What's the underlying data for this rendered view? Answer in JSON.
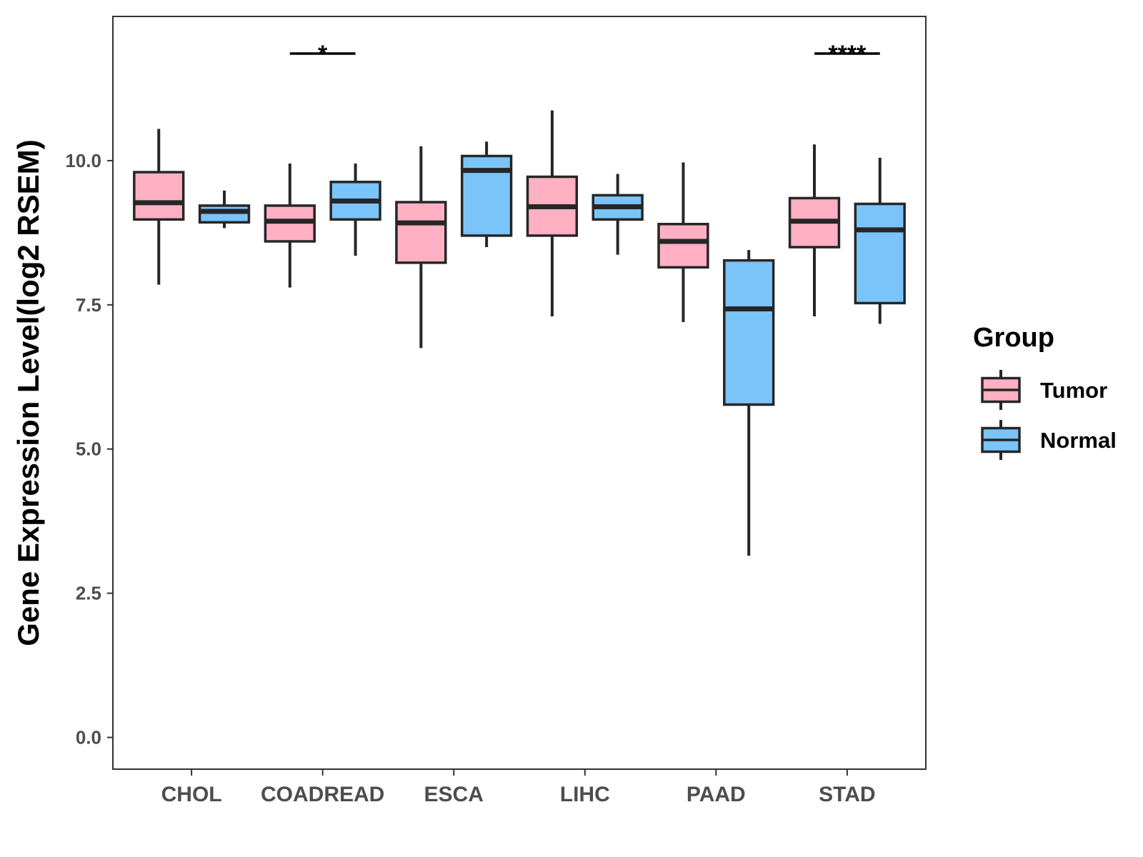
{
  "chart_data": {
    "type": "boxplot",
    "title": "",
    "xlabel": "",
    "ylabel": "Gene Expression Level(log2 RSEM)",
    "ylim": [
      -0.55,
      12.5
    ],
    "yticks": [
      0.0,
      2.5,
      5.0,
      7.5,
      10.0
    ],
    "ytick_labels": [
      "0.0",
      "2.5",
      "5.0",
      "7.5",
      "10.0"
    ],
    "grid": false,
    "categories": [
      "CHOL",
      "COADREAD",
      "ESCA",
      "LIHC",
      "PAAD",
      "STAD"
    ],
    "legend": {
      "title": "Group",
      "position": "right",
      "entries": [
        "Tumor",
        "Normal"
      ]
    },
    "series": [
      {
        "name": "Tumor",
        "color": "#FFB0C3",
        "boxes": [
          {
            "category": "CHOL",
            "min": 7.85,
            "q1": 8.98,
            "median": 9.27,
            "q3": 9.8,
            "max": 10.55
          },
          {
            "category": "COADREAD",
            "min": 7.8,
            "q1": 8.6,
            "median": 8.95,
            "q3": 9.22,
            "max": 9.95
          },
          {
            "category": "ESCA",
            "min": 6.75,
            "q1": 8.23,
            "median": 8.92,
            "q3": 9.28,
            "max": 10.25
          },
          {
            "category": "LIHC",
            "min": 7.3,
            "q1": 8.7,
            "median": 9.2,
            "q3": 9.72,
            "max": 10.87
          },
          {
            "category": "PAAD",
            "min": 7.2,
            "q1": 8.15,
            "median": 8.6,
            "q3": 8.9,
            "max": 9.97
          },
          {
            "category": "STAD",
            "min": 7.3,
            "q1": 8.5,
            "median": 8.95,
            "q3": 9.35,
            "max": 10.28
          }
        ]
      },
      {
        "name": "Normal",
        "color": "#7AC4F9",
        "boxes": [
          {
            "category": "CHOL",
            "min": 8.83,
            "q1": 8.93,
            "median": 9.12,
            "q3": 9.22,
            "max": 9.48
          },
          {
            "category": "COADREAD",
            "min": 8.35,
            "q1": 8.98,
            "median": 9.3,
            "q3": 9.63,
            "max": 9.95
          },
          {
            "category": "ESCA",
            "min": 8.5,
            "q1": 8.7,
            "median": 9.83,
            "q3": 10.08,
            "max": 10.33
          },
          {
            "category": "LIHC",
            "min": 8.37,
            "q1": 8.98,
            "median": 9.2,
            "q3": 9.4,
            "max": 9.77
          },
          {
            "category": "PAAD",
            "min": 3.15,
            "q1": 5.77,
            "median": 7.43,
            "q3": 8.27,
            "max": 8.45
          },
          {
            "category": "STAD",
            "min": 7.17,
            "q1": 7.53,
            "median": 8.8,
            "q3": 9.25,
            "max": 10.05
          }
        ]
      }
    ],
    "significance": [
      {
        "category": "COADREAD",
        "label": "*"
      },
      {
        "category": "STAD",
        "label": "****"
      }
    ]
  }
}
